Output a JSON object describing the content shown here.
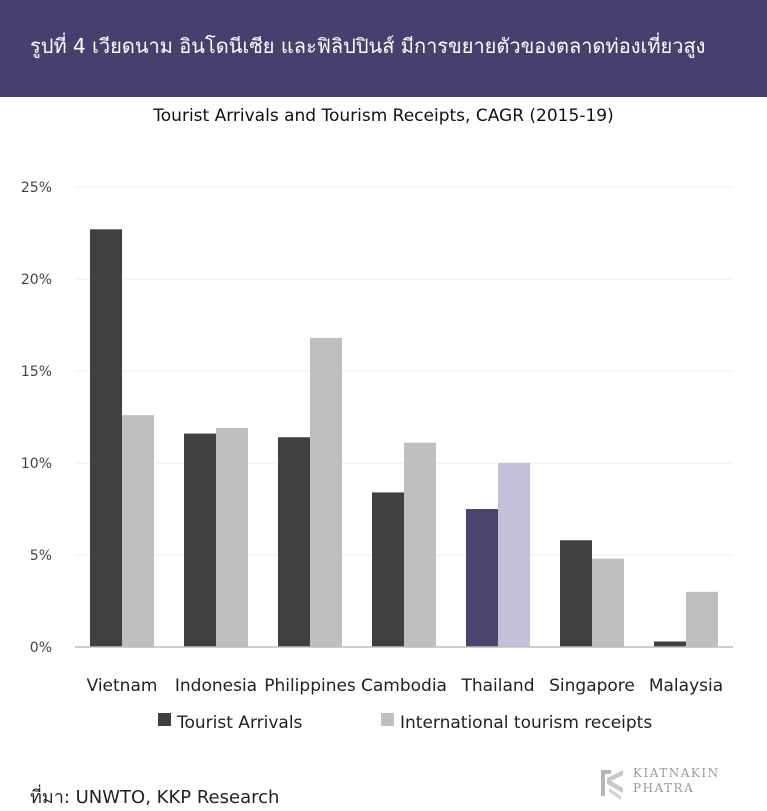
{
  "header": {
    "title": "รูปที่ 4 เวียดนาม อินโดนีเซีย และฟิลิปปินส์ มีการขยายตัวของตลาดท่องเที่ยวสูง"
  },
  "chart_data": {
    "type": "bar",
    "title": "Tourist Arrivals and Tourism Receipts, CAGR (2015-19)",
    "xlabel": "",
    "ylabel": "",
    "categories": [
      "Vietnam",
      "Indonesia",
      "Philippines",
      "Cambodia",
      "Thailand",
      "Singapore",
      "Malaysia"
    ],
    "series": [
      {
        "name": "Tourist Arrivals",
        "values": [
          22.7,
          11.6,
          11.4,
          8.4,
          7.5,
          5.8,
          0.3
        ]
      },
      {
        "name": "International tourism receipts",
        "values": [
          12.6,
          11.9,
          16.8,
          11.1,
          10.0,
          4.8,
          3.0
        ]
      }
    ],
    "ylim": [
      0,
      25
    ],
    "yticks": [
      "0%",
      "5%",
      "10%",
      "15%",
      "20%",
      "25%"
    ],
    "ytick_values": [
      0,
      5,
      10,
      15,
      20,
      25
    ],
    "grid": true,
    "legend_position": "bottom",
    "colors": {
      "series": [
        "#404040",
        "#bfbfbf"
      ],
      "highlight_category": "Thailand",
      "highlight": [
        "#4b4671",
        "#c3c0da"
      ],
      "grid": "#ececec",
      "axis": "#bdbdbd"
    }
  },
  "source": "ที่มา: UNWTO, KKP Research",
  "logo": {
    "icon": "kiatnakin-phatra-logo-icon",
    "line1": "KIATNAKIN",
    "line2": "PHATRA"
  }
}
